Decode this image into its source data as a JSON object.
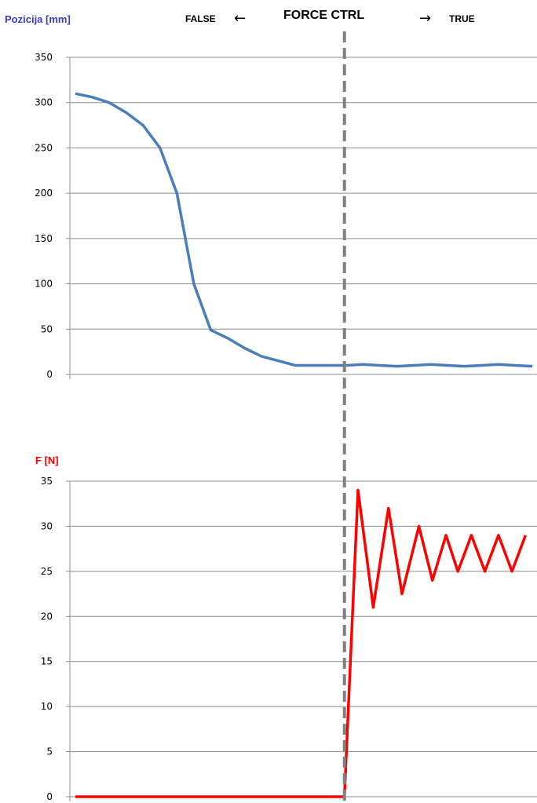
{
  "header": {
    "left": "FALSE",
    "center": "FORCE CTRL",
    "right": "TRUE",
    "left_arrow": "←",
    "right_arrow": "→"
  },
  "colors": {
    "position_line": "#4a7ebb",
    "force_line": "#ff0000",
    "position_title": "#3a3ad0",
    "force_title": "#ff0000",
    "divider": "#808080",
    "grid": "#8c8c8c"
  },
  "chart_data": [
    {
      "type": "line",
      "ylabel": "Pozicija [mm]",
      "ylim": [
        0,
        350
      ],
      "yticks": [
        0,
        50,
        100,
        150,
        200,
        250,
        300,
        350
      ],
      "grid": true,
      "series": [
        {
          "x": [
            0,
            1,
            2,
            3,
            4,
            5,
            6,
            7,
            8,
            9,
            10,
            11,
            12,
            13,
            14,
            15,
            16,
            17,
            18,
            19,
            20,
            21,
            22,
            23,
            24,
            25,
            26,
            27
          ],
          "values": [
            310,
            306,
            300,
            289,
            275,
            250,
            200,
            100,
            49,
            40,
            29,
            20,
            15,
            10,
            10,
            10,
            10,
            11,
            10,
            9,
            10,
            11,
            10,
            9,
            10,
            11,
            10,
            9
          ]
        }
      ]
    },
    {
      "type": "line",
      "ylabel": "F [N]",
      "ylim": [
        0,
        35
      ],
      "yticks": [
        0,
        5,
        10,
        15,
        20,
        25,
        30,
        35
      ],
      "grid": true,
      "series": [
        {
          "x": [
            0,
            15.9,
            16.7,
            17.6,
            18.5,
            19.3,
            20.3,
            21.1,
            21.9,
            22.6,
            23.4,
            24.2,
            25.0,
            25.8,
            26.6
          ],
          "values": [
            0,
            0,
            34,
            21,
            32,
            22.5,
            30,
            24,
            29,
            25,
            29,
            25,
            29,
            25,
            29
          ]
        }
      ]
    }
  ]
}
